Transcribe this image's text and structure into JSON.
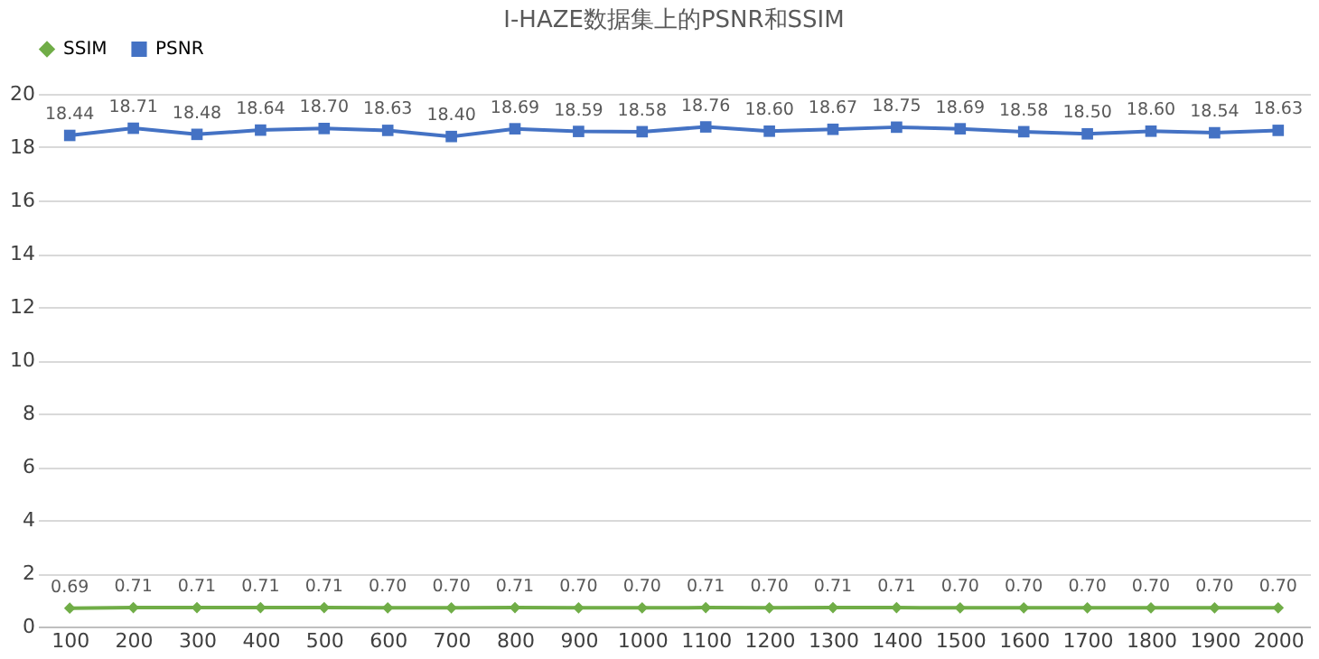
{
  "chart_data": {
    "type": "line",
    "title": "I-HAZE数据集上的PSNR和SSIM",
    "categories": [
      "100",
      "200",
      "300",
      "400",
      "500",
      "600",
      "700",
      "800",
      "900",
      "1000",
      "1100",
      "1200",
      "1300",
      "1400",
      "1500",
      "1600",
      "1700",
      "1800",
      "1900",
      "2000"
    ],
    "series": [
      {
        "name": "SSIM",
        "color": "#70ad47",
        "marker": "diamond",
        "values": [
          0.69,
          0.71,
          0.71,
          0.71,
          0.71,
          0.7,
          0.7,
          0.71,
          0.7,
          0.7,
          0.71,
          0.7,
          0.71,
          0.71,
          0.7,
          0.7,
          0.7,
          0.7,
          0.7,
          0.7
        ],
        "value_labels": [
          "0.69",
          "0.71",
          "0.71",
          "0.71",
          "0.71",
          "0.70",
          "0.70",
          "0.71",
          "0.70",
          "0.70",
          "0.71",
          "0.70",
          "0.71",
          "0.71",
          "0.70",
          "0.70",
          "0.70",
          "0.70",
          "0.70",
          "0.70"
        ]
      },
      {
        "name": "PSNR",
        "color": "#4472c4",
        "marker": "square",
        "values": [
          18.44,
          18.71,
          18.48,
          18.64,
          18.7,
          18.63,
          18.4,
          18.69,
          18.59,
          18.58,
          18.76,
          18.6,
          18.67,
          18.75,
          18.69,
          18.58,
          18.5,
          18.6,
          18.54,
          18.63
        ],
        "value_labels": [
          "18.44",
          "18.71",
          "18.48",
          "18.64",
          "18.70",
          "18.63",
          "18.40",
          "18.69",
          "18.59",
          "18.58",
          "18.76",
          "18.60",
          "18.67",
          "18.75",
          "18.69",
          "18.58",
          "18.50",
          "18.60",
          "18.54",
          "18.63"
        ]
      }
    ],
    "ylim": [
      0,
      20
    ],
    "yticks": [
      0,
      2,
      4,
      6,
      8,
      10,
      12,
      14,
      16,
      18,
      20
    ],
    "grid": "y",
    "legend": "top",
    "line_style": "solid"
  }
}
